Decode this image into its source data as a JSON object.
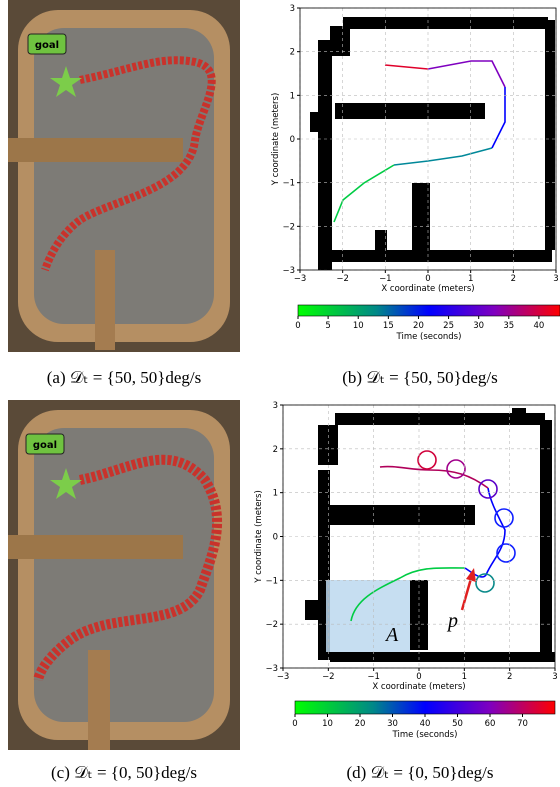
{
  "panels": [
    {
      "goal": "goal",
      "caption": "(a) 𝒟ₜ = {50, 50}deg/s"
    },
    {
      "caption": "(b) 𝒟ₜ = {50, 50}deg/s",
      "x_label": "X coordinate (meters)",
      "y_label": "Y coordinate (meters)",
      "xlim": [
        -3,
        3
      ],
      "ylim": [
        -3,
        3
      ],
      "xticks": [
        {
          "value": -3,
          "label": "−3"
        },
        {
          "value": -2,
          "label": "−2"
        },
        {
          "value": -1,
          "label": "−1"
        },
        0,
        1,
        2,
        3
      ],
      "yticks": [
        {
          "value": -3,
          "label": "−3"
        },
        {
          "value": -2,
          "label": "−2"
        },
        {
          "value": -1,
          "label": "−1"
        },
        0,
        1,
        2,
        3
      ],
      "colorbar": {
        "label": "Time (seconds)",
        "lim": [
          0,
          43.5
        ],
        "ticks": [
          0,
          5,
          10,
          15,
          20,
          25,
          30,
          35,
          40
        ]
      }
    },
    {
      "goal": "goal",
      "caption": "(c) 𝒟ₜ = {0, 50}deg/s"
    },
    {
      "caption": "(d) 𝒟ₜ = {0, 50}deg/s",
      "x_label": "X coordinate (meters)",
      "y_label": "Y coordinate (meters)",
      "xlim": [
        -3,
        3
      ],
      "ylim": [
        -3,
        3
      ],
      "xticks": [
        {
          "value": -3,
          "label": "−3"
        },
        {
          "value": -2,
          "label": "−2"
        },
        {
          "value": -1,
          "label": "−1"
        },
        0,
        1,
        2,
        3
      ],
      "yticks": [
        {
          "value": -3,
          "label": "−3"
        },
        {
          "value": -2,
          "label": "−2"
        },
        {
          "value": -1,
          "label": "−1"
        },
        0,
        1,
        2,
        3
      ],
      "colorbar": {
        "label": "Time (seconds)",
        "lim": [
          0,
          80
        ],
        "ticks": [
          0,
          10,
          20,
          30,
          40,
          50,
          60,
          70
        ]
      },
      "annotations": [
        "A",
        "p"
      ]
    }
  ]
}
